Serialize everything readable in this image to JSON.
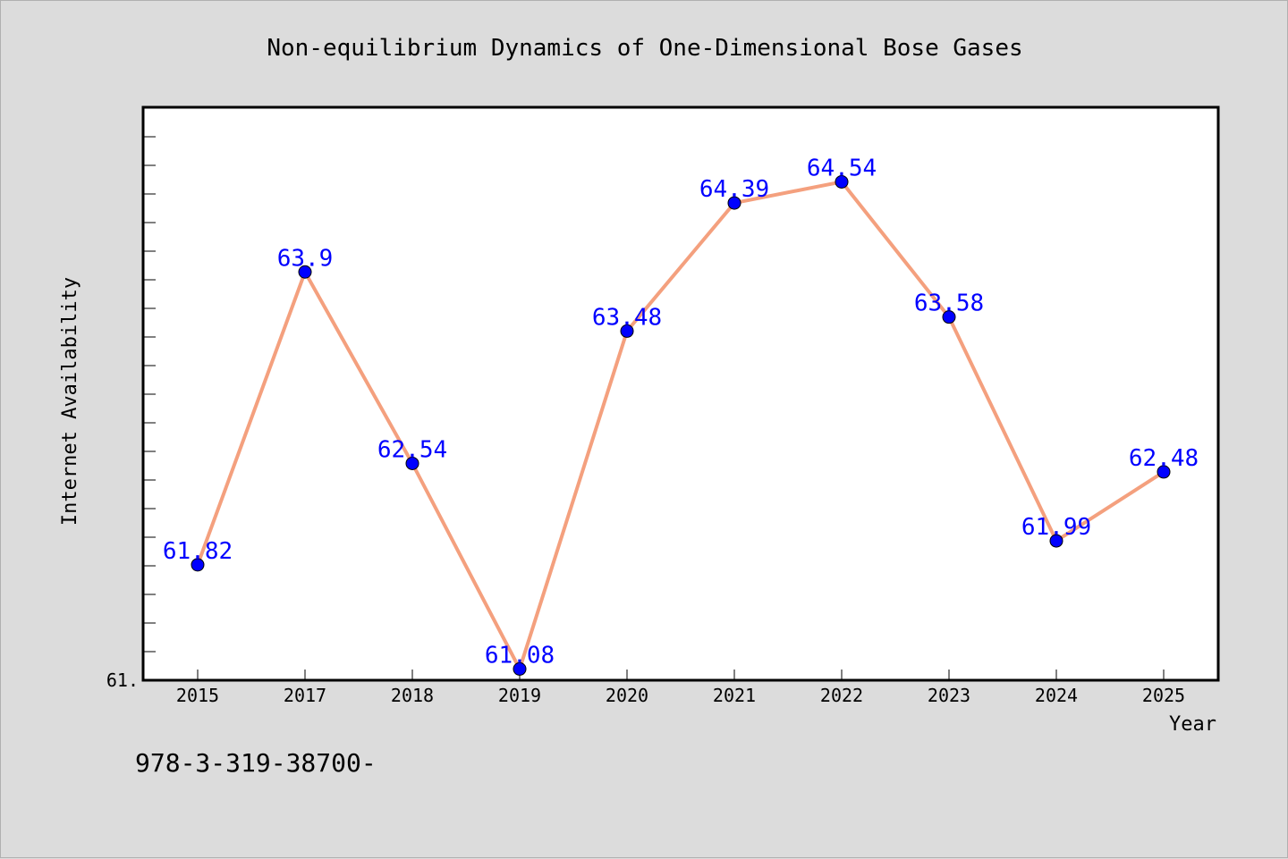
{
  "chart_data": {
    "type": "line",
    "title": "Non-equilibrium Dynamics of One-Dimensional Bose Gases",
    "xlabel": "Year",
    "ylabel": "Internet Availability",
    "categories": [
      "2015",
      "2017",
      "2018",
      "2019",
      "2020",
      "2021",
      "2022",
      "2023",
      "2024",
      "2025"
    ],
    "values": [
      61.82,
      63.9,
      62.54,
      61.08,
      63.48,
      64.39,
      64.54,
      63.58,
      61.99,
      62.48
    ],
    "data_labels": [
      "61.82",
      "63.9",
      "62.54",
      "61.08",
      "63.48",
      "64.39",
      "64.54",
      "63.58",
      "61.99",
      "62.48"
    ],
    "y_tick_label": "61.",
    "ylim": [
      61.0,
      65.0
    ],
    "line_color": "#f4a07e",
    "marker_color": "#0000ff",
    "label_color": "#0000ff",
    "grid": false,
    "legend": "none"
  },
  "footer": {
    "isbn_text": "978-3-319-38700-"
  }
}
